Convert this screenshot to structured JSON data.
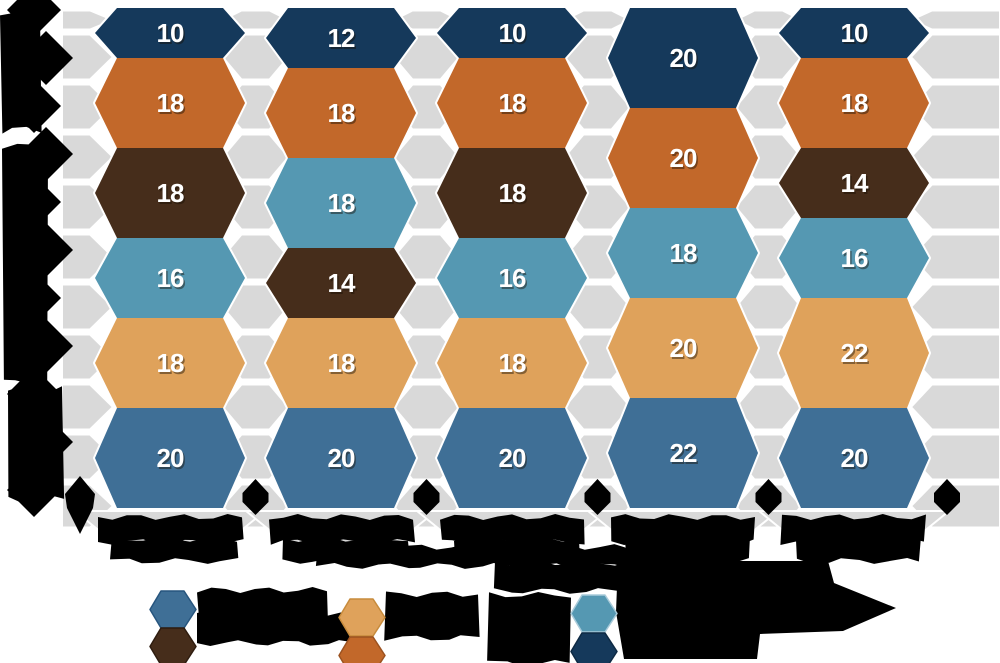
{
  "title_redacted": true,
  "colors": {
    "navy": "#15395B",
    "orange": "#C2682A",
    "brown": "#462D1B",
    "lightblue": "#5598B2",
    "tan": "#DFA25B",
    "steel": "#3F6F96",
    "lattice_gray": "#D9D9D9",
    "separator_white": "#FFFFFF",
    "redaction_black": "#000000",
    "value_text": "#FFFFFF"
  },
  "chart_data": {
    "type": "bar",
    "subtype": "stacked-hexagon-columns",
    "orientation": "vertical",
    "ylim": [
      0,
      100
    ],
    "each_column_total": 100,
    "grid": "hexagon-lattice",
    "legend_position": "bottom",
    "y_axis_title_redacted": true,
    "y_tick_labels_redacted": true,
    "x_tick_labels_redacted": true,
    "caption_redacted": true,
    "columns": [
      {
        "label_redacted": true,
        "segments": [
          {
            "series": "navy",
            "value": 10
          },
          {
            "series": "orange",
            "value": 18
          },
          {
            "series": "brown",
            "value": 18
          },
          {
            "series": "lightblue",
            "value": 16
          },
          {
            "series": "tan",
            "value": 18
          },
          {
            "series": "steel",
            "value": 20
          }
        ]
      },
      {
        "label_redacted": true,
        "segments": [
          {
            "series": "navy",
            "value": 12
          },
          {
            "series": "orange",
            "value": 18
          },
          {
            "series": "lightblue",
            "value": 18
          },
          {
            "series": "brown",
            "value": 14
          },
          {
            "series": "tan",
            "value": 18
          },
          {
            "series": "steel",
            "value": 20
          }
        ]
      },
      {
        "label_redacted": true,
        "segments": [
          {
            "series": "navy",
            "value": 10
          },
          {
            "series": "orange",
            "value": 18
          },
          {
            "series": "brown",
            "value": 18
          },
          {
            "series": "lightblue",
            "value": 16
          },
          {
            "series": "tan",
            "value": 18
          },
          {
            "series": "steel",
            "value": 20
          }
        ]
      },
      {
        "label_redacted": true,
        "segments": [
          {
            "series": "navy",
            "value": 20
          },
          {
            "series": "orange",
            "value": 20
          },
          {
            "series": "lightblue",
            "value": 18
          },
          {
            "series": "tan",
            "value": 20
          },
          {
            "series": "steel",
            "value": 22
          }
        ]
      },
      {
        "label_redacted": true,
        "segments": [
          {
            "series": "navy",
            "value": 10
          },
          {
            "series": "orange",
            "value": 18
          },
          {
            "series": "brown",
            "value": 14
          },
          {
            "series": "lightblue",
            "value": 16
          },
          {
            "series": "tan",
            "value": 22
          },
          {
            "series": "steel",
            "value": 20
          }
        ]
      }
    ],
    "legend": [
      {
        "marker_top": "steel",
        "marker_bottom": "brown",
        "text_redacted": true
      },
      {
        "marker_top": "tan",
        "marker_bottom": "orange",
        "text_redacted": true
      },
      {
        "marker_top": "lightblue",
        "marker_bottom": "navy",
        "text_redacted": true
      }
    ]
  }
}
